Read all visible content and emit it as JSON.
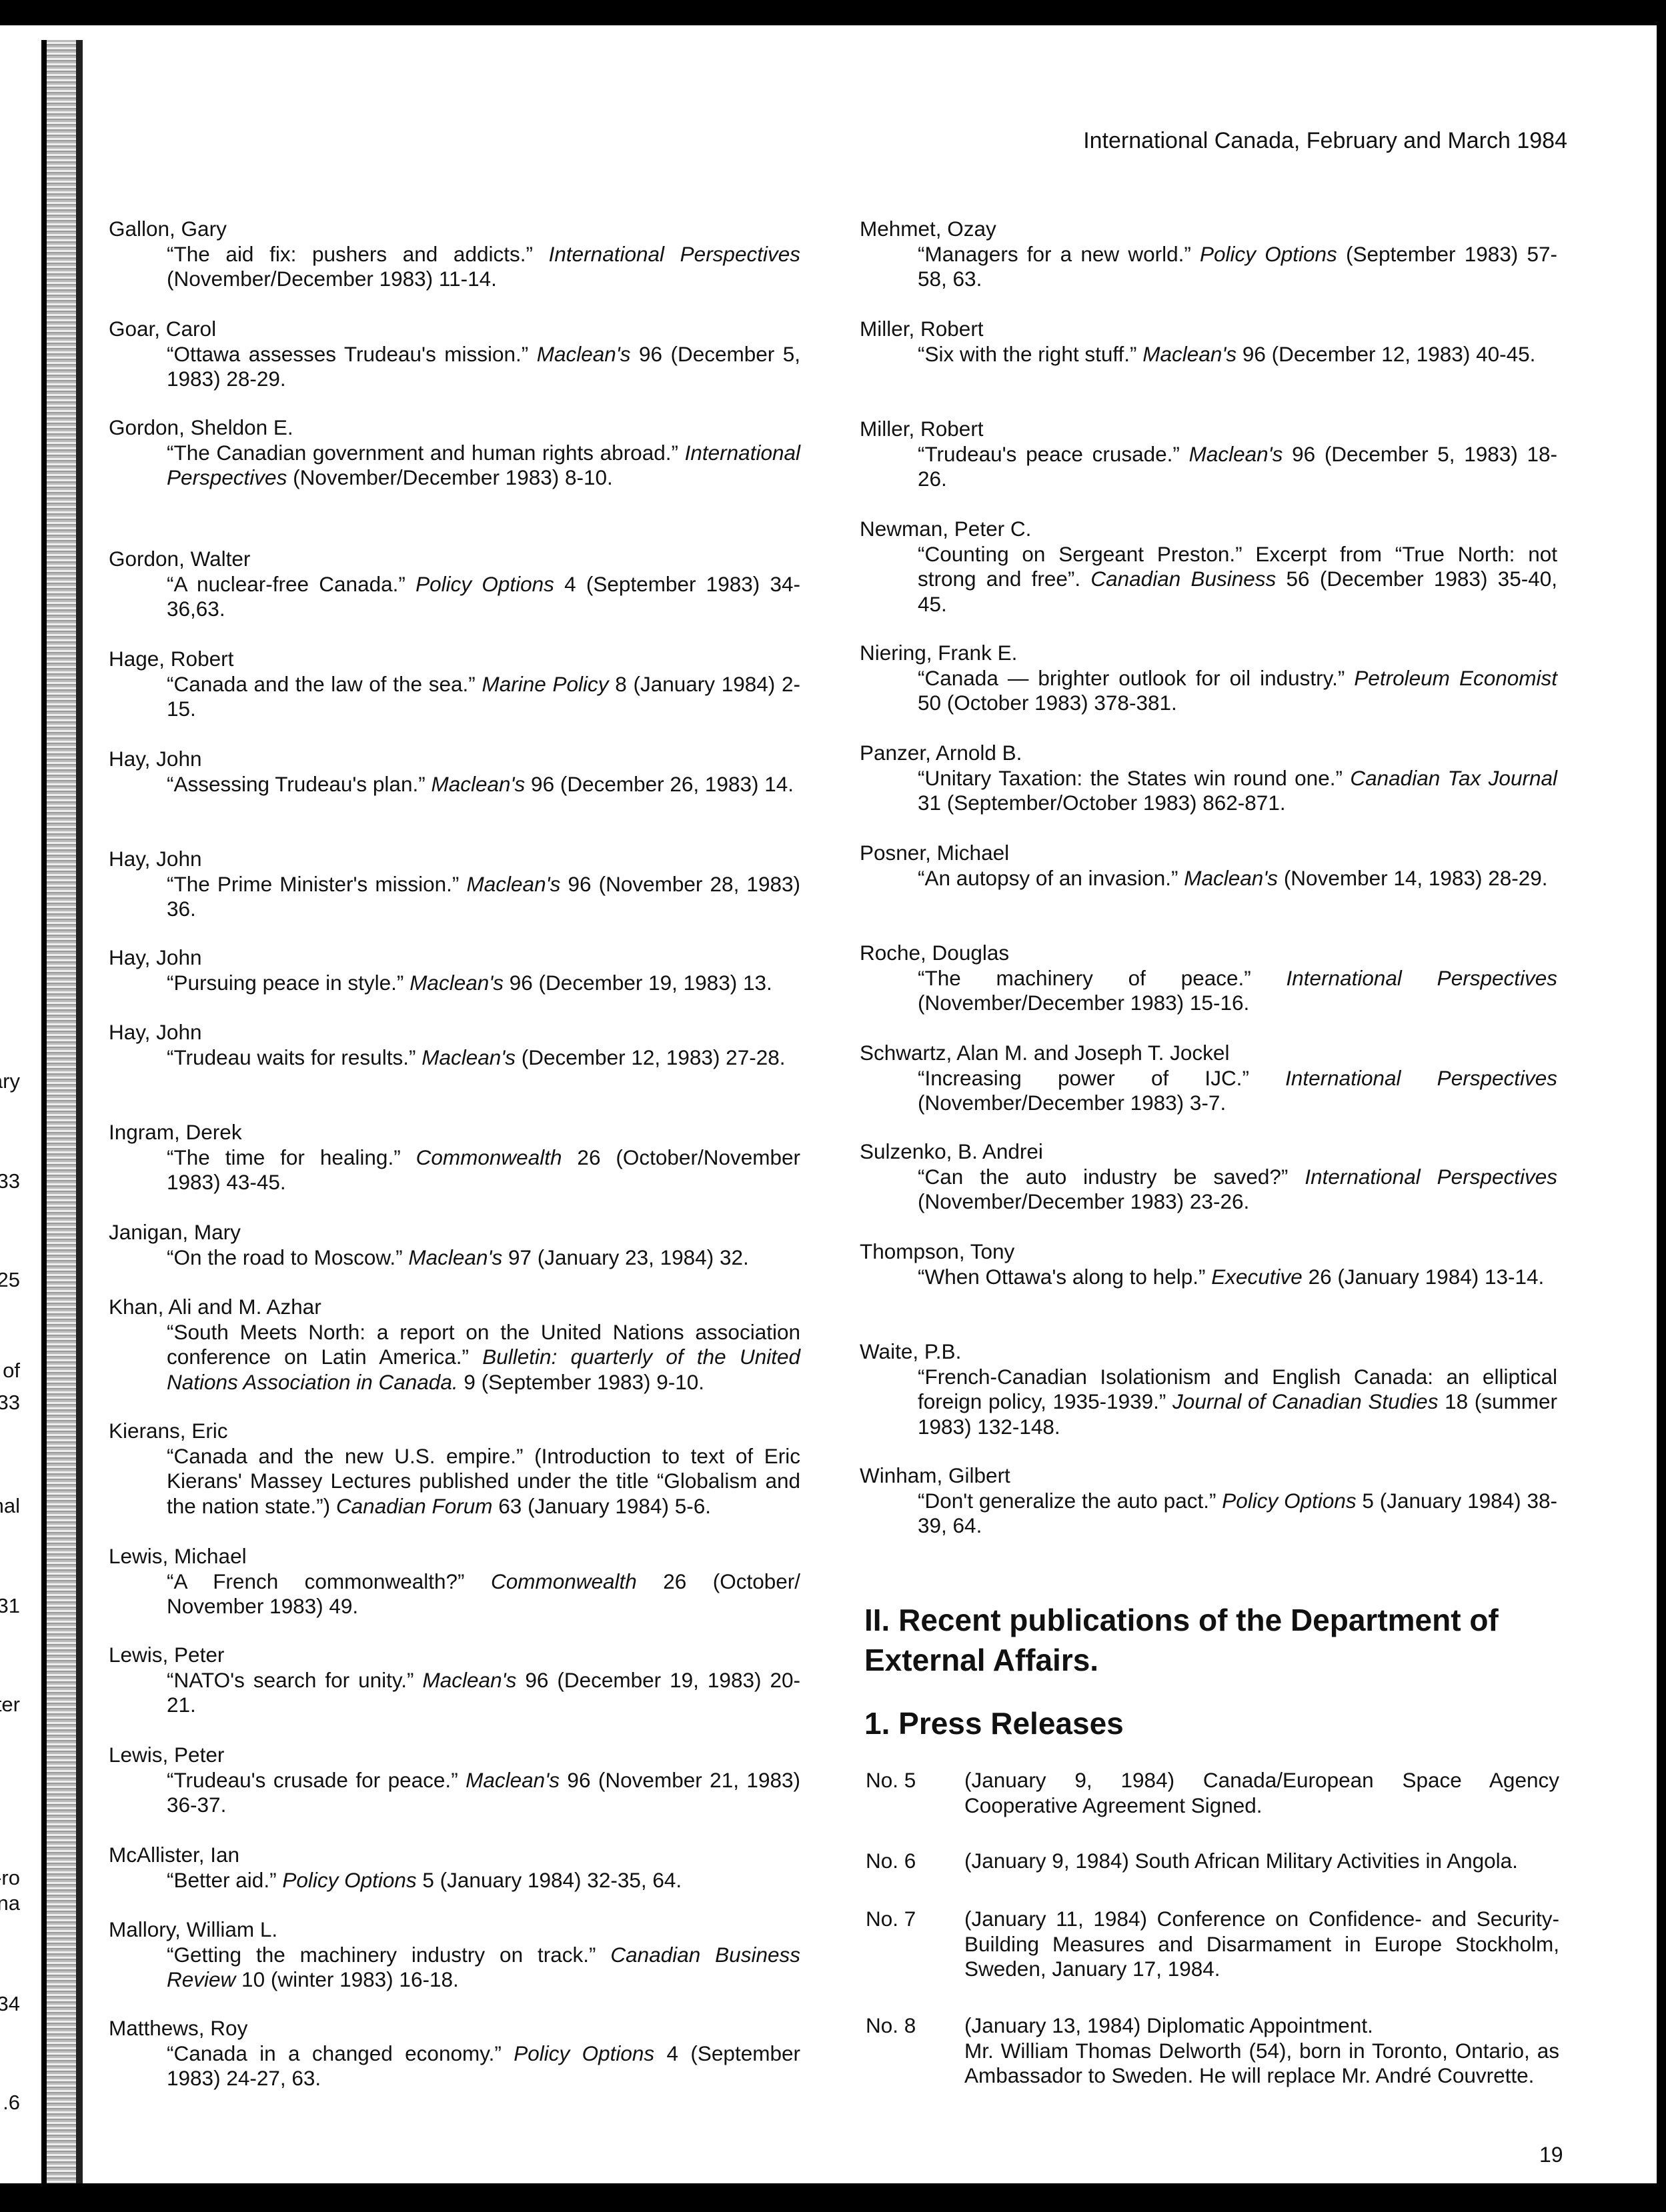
{
  "header": "International Canada, February and March 1984",
  "margin_fragments": [
    "ary",
    "33)",
    "25",
    "of",
    "33)",
    "nal",
    "31",
    "ter",
    "ro-",
    "na-",
    "34)",
    "6."
  ],
  "left_entries": [
    {
      "author": "Gallon, Gary",
      "cite": [
        {
          "t": "“The aid fix: pushers and addicts.” "
        },
        {
          "t": "International Perspectives",
          "i": true
        },
        {
          "t": " (November/December 1983) 11-14."
        }
      ]
    },
    {
      "author": "Goar, Carol",
      "cite": [
        {
          "t": "“Ottawa assesses Trudeau's mission.” "
        },
        {
          "t": "Maclean's",
          "i": true
        },
        {
          "t": " 96 (December 5, 1983) 28-29."
        }
      ]
    },
    {
      "author": "Gordon, Sheldon E.",
      "cite": [
        {
          "t": "“The Canadian government and human rights abroad.” "
        },
        {
          "t": "International Perspectives",
          "i": true
        },
        {
          "t": " (November/December 1983) 8-10."
        }
      ]
    },
    {
      "author": "Gordon, Walter",
      "cite": [
        {
          "t": "“A nuclear-free Canada.” "
        },
        {
          "t": "Policy Options",
          "i": true
        },
        {
          "t": " 4 (September 1983) 34-36,63."
        }
      ]
    },
    {
      "author": "Hage, Robert",
      "cite": [
        {
          "t": "“Canada and the law of the sea.” "
        },
        {
          "t": "Marine Policy",
          "i": true
        },
        {
          "t": " 8 (January 1984) 2-15."
        }
      ]
    },
    {
      "author": "Hay, John",
      "cite": [
        {
          "t": "“Assessing Trudeau's plan.” "
        },
        {
          "t": "Maclean's",
          "i": true
        },
        {
          "t": " 96 (December 26, 1983) 14."
        }
      ]
    },
    {
      "author": "Hay, John",
      "cite": [
        {
          "t": "“The Prime Minister's mission.” "
        },
        {
          "t": "Maclean's",
          "i": true
        },
        {
          "t": " 96 (November 28, 1983) 36."
        }
      ]
    },
    {
      "author": "Hay, John",
      "cite": [
        {
          "t": "“Pursuing peace in style.” "
        },
        {
          "t": "Maclean's",
          "i": true
        },
        {
          "t": " 96 (December 19, 1983) 13."
        }
      ]
    },
    {
      "author": "Hay, John",
      "cite": [
        {
          "t": "“Trudeau waits for results.” "
        },
        {
          "t": "Maclean's",
          "i": true
        },
        {
          "t": " (December 12, 1983) 27-28."
        }
      ]
    },
    {
      "author": "Ingram, Derek",
      "cite": [
        {
          "t": "“The time for healing.” "
        },
        {
          "t": "Commonwealth",
          "i": true
        },
        {
          "t": " 26 (October/November 1983) 43-45."
        }
      ]
    },
    {
      "author": "Janigan, Mary",
      "cite": [
        {
          "t": "“On the road to Moscow.” "
        },
        {
          "t": "Maclean's",
          "i": true
        },
        {
          "t": " 97 (January 23, 1984) 32."
        }
      ]
    },
    {
      "author": "Khan, Ali and M. Azhar",
      "cite": [
        {
          "t": "“South Meets North: a report on the United Nations association conference on Latin America.” "
        },
        {
          "t": "Bulletin: quarterly of the United Nations Association in Canada.",
          "i": true
        },
        {
          "t": " 9 (September 1983) 9-10."
        }
      ]
    },
    {
      "author": "Kierans, Eric",
      "cite": [
        {
          "t": "“Canada and the new U.S. empire.” (Introduction to text of Eric Kierans' Massey Lectures published under the title “Globalism and the nation state.”) "
        },
        {
          "t": "Canadian Forum",
          "i": true
        },
        {
          "t": " 63 (January 1984) 5-6."
        }
      ]
    },
    {
      "author": "Lewis, Michael",
      "cite": [
        {
          "t": "“A French commonwealth?” "
        },
        {
          "t": "Commonwealth",
          "i": true
        },
        {
          "t": " 26 (October/ November 1983) 49."
        }
      ]
    },
    {
      "author": "Lewis, Peter",
      "cite": [
        {
          "t": "“NATO's search for unity.” "
        },
        {
          "t": "Maclean's",
          "i": true
        },
        {
          "t": " 96 (December 19, 1983) 20-21."
        }
      ]
    },
    {
      "author": "Lewis, Peter",
      "cite": [
        {
          "t": "“Trudeau's crusade for peace.” "
        },
        {
          "t": "Maclean's",
          "i": true
        },
        {
          "t": " 96 (November 21, 1983) 36-37."
        }
      ]
    },
    {
      "author": "McAllister, Ian",
      "cite": [
        {
          "t": "“Better aid.” "
        },
        {
          "t": "Policy Options",
          "i": true
        },
        {
          "t": " 5 (January 1984) 32-35, 64."
        }
      ]
    },
    {
      "author": "Mallory, William L.",
      "cite": [
        {
          "t": "“Getting the machinery industry on track.” "
        },
        {
          "t": "Canadian Business Review",
          "i": true
        },
        {
          "t": " 10 (winter 1983) 16-18."
        }
      ]
    },
    {
      "author": "Matthews, Roy",
      "cite": [
        {
          "t": "“Canada in a changed economy.” "
        },
        {
          "t": "Policy Options",
          "i": true
        },
        {
          "t": " 4 (September 1983) 24-27, 63."
        }
      ]
    }
  ],
  "right_entries": [
    {
      "author": "Mehmet, Ozay",
      "cite": [
        {
          "t": "“Managers for a new world.” "
        },
        {
          "t": "Policy Options",
          "i": true
        },
        {
          "t": " (September 1983) 57-58, 63."
        }
      ]
    },
    {
      "author": "Miller, Robert",
      "cite": [
        {
          "t": "“Six with the right stuff.” "
        },
        {
          "t": "Maclean's",
          "i": true
        },
        {
          "t": " 96 (December 12, 1983) 40-45."
        }
      ]
    },
    {
      "author": "Miller, Robert",
      "cite": [
        {
          "t": "“Trudeau's peace crusade.” "
        },
        {
          "t": "Maclean's",
          "i": true
        },
        {
          "t": " 96 (December 5, 1983) 18-26."
        }
      ]
    },
    {
      "author": "Newman, Peter C.",
      "cite": [
        {
          "t": "“Counting on Sergeant Preston.” Excerpt from “True North: not strong and free”. "
        },
        {
          "t": "Canadian Business",
          "i": true
        },
        {
          "t": " 56 (December 1983) 35-40, 45."
        }
      ]
    },
    {
      "author": "Niering, Frank E.",
      "cite": [
        {
          "t": "“Canada — brighter outlook for oil industry.” "
        },
        {
          "t": "Petroleum Economist",
          "i": true
        },
        {
          "t": " 50 (October 1983) 378-381."
        }
      ]
    },
    {
      "author": "Panzer, Arnold B.",
      "cite": [
        {
          "t": "“Unitary Taxation: the States win round one.” "
        },
        {
          "t": "Canadian Tax Journal",
          "i": true
        },
        {
          "t": " 31 (September/October 1983) 862-871."
        }
      ]
    },
    {
      "author": "Posner, Michael",
      "cite": [
        {
          "t": "“An autopsy of an invasion.” "
        },
        {
          "t": "Maclean's",
          "i": true
        },
        {
          "t": " (November 14, 1983) 28-29."
        }
      ]
    },
    {
      "author": "Roche, Douglas",
      "cite": [
        {
          "t": "“The machinery of peace.” "
        },
        {
          "t": "International Perspectives",
          "i": true
        },
        {
          "t": " (November/December 1983) 15-16."
        }
      ]
    },
    {
      "author": "Schwartz, Alan M. and Joseph T. Jockel",
      "cite": [
        {
          "t": "“Increasing power of IJC.” "
        },
        {
          "t": "International Perspectives",
          "i": true
        },
        {
          "t": " (November/December 1983) 3-7."
        }
      ]
    },
    {
      "author": "Sulzenko, B. Andrei",
      "cite": [
        {
          "t": "“Can the auto industry be saved?” "
        },
        {
          "t": "International Perspectives",
          "i": true
        },
        {
          "t": " (November/December 1983) 23-26."
        }
      ]
    },
    {
      "author": "Thompson, Tony",
      "cite": [
        {
          "t": "“When Ottawa's along to help.” "
        },
        {
          "t": "Executive",
          "i": true
        },
        {
          "t": " 26 (January 1984) 13-14."
        }
      ]
    },
    {
      "author": "Waite, P.B.",
      "cite": [
        {
          "t": "“French-Canadian Isolationism and English Canada: an elliptical foreign policy, 1935-1939.” "
        },
        {
          "t": "Journal of Canadian Studies",
          "i": true
        },
        {
          "t": " 18 (summer 1983) 132-148."
        }
      ]
    },
    {
      "author": "Winham, Gilbert",
      "cite": [
        {
          "t": "“Don't generalize the auto pact.” "
        },
        {
          "t": "Policy Options",
          "i": true
        },
        {
          "t": " 5 (January 1984) 38-39, 64."
        }
      ]
    }
  ],
  "section_heading": "II. Recent publications of the Department of External Affairs.",
  "subsection_heading": "1. Press Releases",
  "press_releases": [
    {
      "num": "No. 5",
      "text": "(January 9, 1984) Canada/European Space Agency Cooperative Agreement Signed."
    },
    {
      "num": "No. 6",
      "text": "(January 9, 1984) South African Military Activities in Angola."
    },
    {
      "num": "No. 7",
      "text": "(January 11, 1984) Conference on Confidence- and Security-Building Measures and Disarmament in Europe Stockholm, Sweden, January 17, 1984."
    },
    {
      "num": "No. 8",
      "text": "(January 13, 1984) Diplomatic Appointment.",
      "text2": "Mr. William Thomas Delworth (54), born in Toronto, Ontario, as Ambassador to Sweden. He will replace Mr. André Couvrette."
    }
  ],
  "page_number": "19"
}
